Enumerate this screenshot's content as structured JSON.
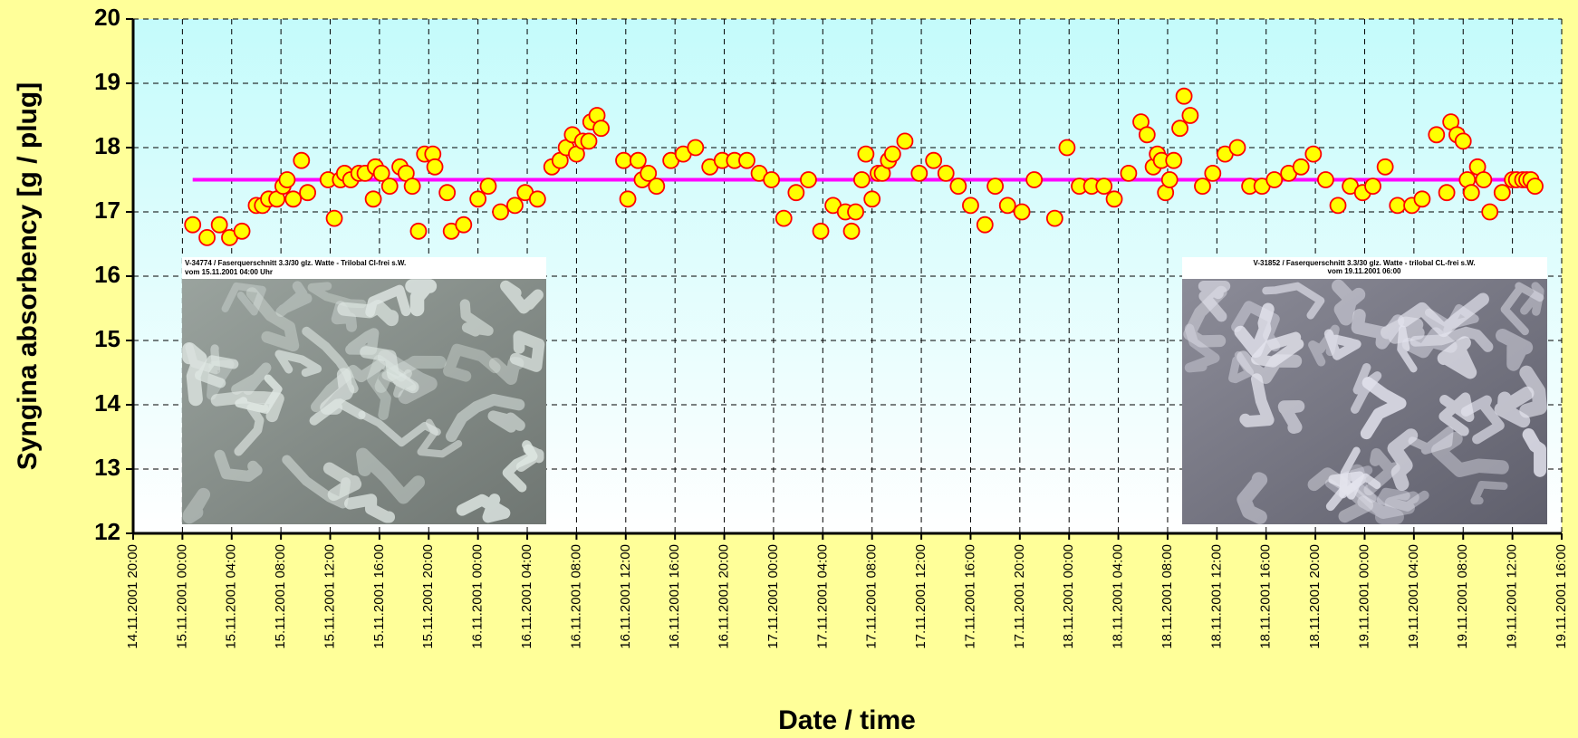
{
  "chart_data": {
    "type": "scatter",
    "x_label": "Date / time",
    "y_label": "Syngina  absorbency [g / plug]",
    "x": [
      "15.11.2001 00:50",
      "15.11.2001 02:00",
      "15.11.2001 03:00",
      "15.11.2001 03:50",
      "15.11.2001 04:50",
      "15.11.2001 06:00",
      "15.11.2001 06:30",
      "15.11.2001 07:00",
      "15.11.2001 07:40",
      "15.11.2001 08:10",
      "15.11.2001 08:30",
      "15.11.2001 09:00",
      "15.11.2001 09:40",
      "15.11.2001 10:10",
      "15.11.2001 11:50",
      "15.11.2001 12:20",
      "15.11.2001 12:50",
      "15.11.2001 13:10",
      "15.11.2001 13:40",
      "15.11.2001 14:20",
      "15.11.2001 14:50",
      "15.11.2001 15:30",
      "15.11.2001 15:40",
      "15.11.2001 16:10",
      "15.11.2001 16:50",
      "15.11.2001 17:40",
      "15.11.2001 18:10",
      "15.11.2001 18:40",
      "15.11.2001 19:10",
      "15.11.2001 19:40",
      "15.11.2001 20:20",
      "15.11.2001 20:30",
      "15.11.2001 21:30",
      "15.11.2001 21:50",
      "15.11.2001 22:50",
      "16.11.2001 00:00",
      "16.11.2001 00:50",
      "16.11.2001 01:50",
      "16.11.2001 03:00",
      "16.11.2001 03:50",
      "16.11.2001 04:50",
      "16.11.2001 06:00",
      "16.11.2001 06:40",
      "16.11.2001 07:10",
      "16.11.2001 07:40",
      "16.11.2001 08:00",
      "16.11.2001 08:30",
      "16.11.2001 09:00",
      "16.11.2001 09:10",
      "16.11.2001 09:40",
      "16.11.2001 10:00",
      "16.11.2001 11:50",
      "16.11.2001 12:10",
      "16.11.2001 13:00",
      "16.11.2001 13:20",
      "16.11.2001 13:50",
      "16.11.2001 14:30",
      "16.11.2001 15:40",
      "16.11.2001 16:40",
      "16.11.2001 17:40",
      "16.11.2001 18:50",
      "16.11.2001 19:50",
      "16.11.2001 20:50",
      "16.11.2001 21:50",
      "16.11.2001 22:50",
      "16.11.2001 23:50",
      "17.11.2001 00:50",
      "17.11.2001 01:50",
      "17.11.2001 02:50",
      "17.11.2001 03:50",
      "17.11.2001 04:50",
      "17.11.2001 05:50",
      "17.11.2001 06:20",
      "17.11.2001 06:40",
      "17.11.2001 07:10",
      "17.11.2001 07:30",
      "17.11.2001 08:00",
      "17.11.2001 08:30",
      "17.11.2001 08:50",
      "17.11.2001 09:20",
      "17.11.2001 09:40",
      "17.11.2001 10:40",
      "17.11.2001 11:50",
      "17.11.2001 13:00",
      "17.11.2001 14:00",
      "17.11.2001 15:00",
      "17.11.2001 16:00",
      "17.11.2001 17:10",
      "17.11.2001 18:00",
      "17.11.2001 19:00",
      "17.11.2001 20:10",
      "17.11.2001 21:10",
      "17.11.2001 22:50",
      "17.11.2001 23:50",
      "18.11.2001 00:50",
      "18.11.2001 01:50",
      "18.11.2001 02:50",
      "18.11.2001 03:40",
      "18.11.2001 04:50",
      "18.11.2001 05:50",
      "18.11.2001 06:20",
      "18.11.2001 06:50",
      "18.11.2001 07:10",
      "18.11.2001 07:30",
      "18.11.2001 07:50",
      "18.11.2001 08:10",
      "18.11.2001 08:30",
      "18.11.2001 09:00",
      "18.11.2001 09:20",
      "18.11.2001 09:50",
      "18.11.2001 10:50",
      "18.11.2001 11:40",
      "18.11.2001 12:40",
      "18.11.2001 13:40",
      "18.11.2001 14:40",
      "18.11.2001 15:40",
      "18.11.2001 16:40",
      "18.11.2001 17:50",
      "18.11.2001 18:50",
      "18.11.2001 19:50",
      "18.11.2001 20:50",
      "18.11.2001 21:50",
      "18.11.2001 22:50",
      "18.11.2001 23:50",
      "19.11.2001 00:40",
      "19.11.2001 01:40",
      "19.11.2001 02:40",
      "19.11.2001 03:50",
      "19.11.2001 04:40",
      "19.11.2001 05:50",
      "19.11.2001 06:40",
      "19.11.2001 07:00",
      "19.11.2001 07:30",
      "19.11.2001 08:00",
      "19.11.2001 08:20",
      "19.11.2001 08:40",
      "19.11.2001 09:10",
      "19.11.2001 09:40",
      "19.11.2001 10:10",
      "19.11.2001 11:10",
      "19.11.2001 12:00",
      "19.11.2001 12:20",
      "19.11.2001 12:50",
      "19.11.2001 13:10",
      "19.11.2001 13:30",
      "19.11.2001 13:50"
    ],
    "series": [
      {
        "color": "#ffff00",
        "edgecolor": "#ff0000",
        "values": [
          16.8,
          16.6,
          16.8,
          16.6,
          16.7,
          17.1,
          17.1,
          17.2,
          17.2,
          17.4,
          17.5,
          17.2,
          17.8,
          17.3,
          17.5,
          16.9,
          17.5,
          17.6,
          17.5,
          17.6,
          17.6,
          17.2,
          17.7,
          17.6,
          17.4,
          17.7,
          17.6,
          17.4,
          16.7,
          17.9,
          17.9,
          17.7,
          17.3,
          16.7,
          16.8,
          17.2,
          17.4,
          17.0,
          17.1,
          17.3,
          17.2,
          17.7,
          17.8,
          18.0,
          18.2,
          17.9,
          18.1,
          18.1,
          18.4,
          18.5,
          18.3,
          17.8,
          17.2,
          17.8,
          17.5,
          17.6,
          17.4,
          17.8,
          17.9,
          18.0,
          17.7,
          17.8,
          17.8,
          17.8,
          17.6,
          17.5,
          16.9,
          17.3,
          17.5,
          16.7,
          17.1,
          17.0,
          16.7,
          17.0,
          17.5,
          17.9,
          17.2,
          17.6,
          17.6,
          17.8,
          17.9,
          18.1,
          17.6,
          17.8,
          17.6,
          17.4,
          17.1,
          16.8,
          17.4,
          17.1,
          17.0,
          17.5,
          16.9,
          18.0,
          17.4,
          17.4,
          17.4,
          17.2,
          17.6,
          18.4,
          18.2,
          17.7,
          17.9,
          17.8,
          17.3,
          17.5,
          17.8,
          18.3,
          18.8,
          18.5,
          17.4,
          17.6,
          17.9,
          18.0,
          17.4,
          17.4,
          17.5,
          17.6,
          17.7,
          17.9,
          17.5,
          17.1,
          17.4,
          17.3,
          17.4,
          17.7,
          17.1,
          17.1,
          17.2,
          18.2,
          17.3,
          18.4,
          18.2,
          18.1,
          17.5,
          17.3,
          17.7,
          17.5,
          17.0,
          17.3,
          17.5,
          17.5,
          17.5,
          17.5,
          17.5,
          17.4
        ]
      }
    ],
    "reference_line": {
      "value": 17.5,
      "color": "#ff00ff"
    },
    "ylim": [
      12,
      20
    ],
    "yticks": [
      12,
      13,
      14,
      15,
      16,
      17,
      18,
      19,
      20
    ],
    "xlim": [
      "14.11.2001 20:00",
      "19.11.2001 16:00"
    ],
    "xticks": [
      "14.11.2001 20:00",
      "15.11.2001 00:00",
      "15.11.2001 04:00",
      "15.11.2001 08:00",
      "15.11.2001 12:00",
      "15.11.2001 16:00",
      "15.11.2001 20:00",
      "16.11.2001 00:00",
      "16.11.2001 04:00",
      "16.11.2001 08:00",
      "16.11.2001 12:00",
      "16.11.2001 16:00",
      "16.11.2001 20:00",
      "17.11.2001 00:00",
      "17.11.2001 04:00",
      "17.11.2001 08:00",
      "17.11.2001 12:00",
      "17.11.2001 16:00",
      "17.11.2001 20:00",
      "18.11.2001 00:00",
      "18.11.2001 04:00",
      "18.11.2001 08:00",
      "18.11.2001 12:00",
      "18.11.2001 16:00",
      "18.11.2001 20:00",
      "19.11.2001 00:00",
      "19.11.2001 04:00",
      "19.11.2001 08:00",
      "19.11.2001 12:00",
      "19.11.2001 16:00"
    ],
    "grid": true,
    "annotations": [
      [
        "V-34774 / Faserquerschnitt  3.3/30 glz. Watte - Trilobal Cl-frei s.W.",
        "vom 15.11.2001  04:00 Uhr"
      ],
      [
        "V-31852 / Faserquerschnitt  3.3/30 glz. Watte - trilobal CL-frei s.W.",
        "vom 19.11.2001  06:00"
      ]
    ]
  }
}
